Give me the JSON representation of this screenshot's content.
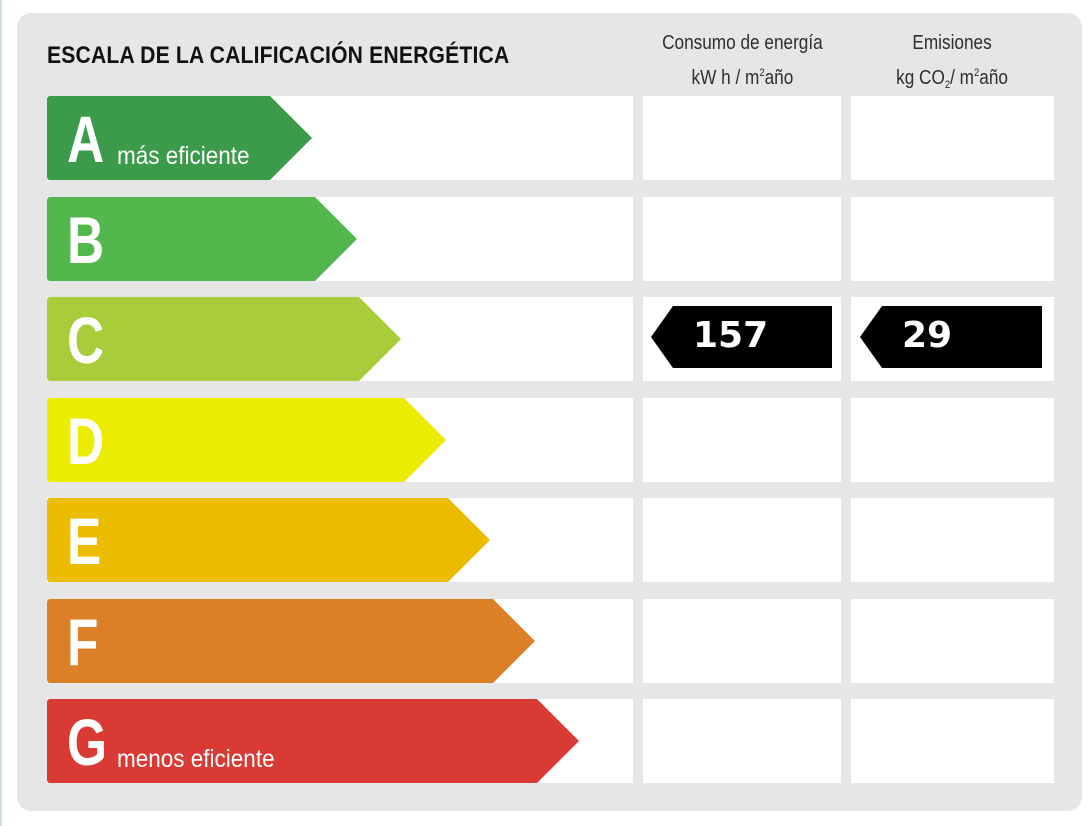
{
  "title": "ESCALA DE LA CALIFICACIÓN ENERGÉTICA",
  "columns": {
    "energy": {
      "line1": "Consumo de energía",
      "unit_prefix": "kW h / m",
      "unit_sup": "2",
      "unit_suffix": "año"
    },
    "emissions": {
      "line1": "Emisiones",
      "unit_prefix": "kg CO",
      "unit_sub": "2",
      "unit_mid": "/ m",
      "unit_sup": "2",
      "unit_suffix": "año"
    }
  },
  "rows": [
    {
      "letter": "A",
      "sublabel": "más eficiente",
      "color": "#3b9b4a"
    },
    {
      "letter": "B",
      "sublabel": "",
      "color": "#52b84d"
    },
    {
      "letter": "C",
      "sublabel": "",
      "color": "#a9cd3a"
    },
    {
      "letter": "D",
      "sublabel": "",
      "color": "#ecec00"
    },
    {
      "letter": "E",
      "sublabel": "",
      "color": "#ecbc00"
    },
    {
      "letter": "F",
      "sublabel": "",
      "color": "#dc8027"
    },
    {
      "letter": "G",
      "sublabel": "menos eficiente",
      "color": "#d93a34"
    }
  ],
  "rating": {
    "letter": "C",
    "energy_value": "157",
    "emissions_value": "29"
  }
}
